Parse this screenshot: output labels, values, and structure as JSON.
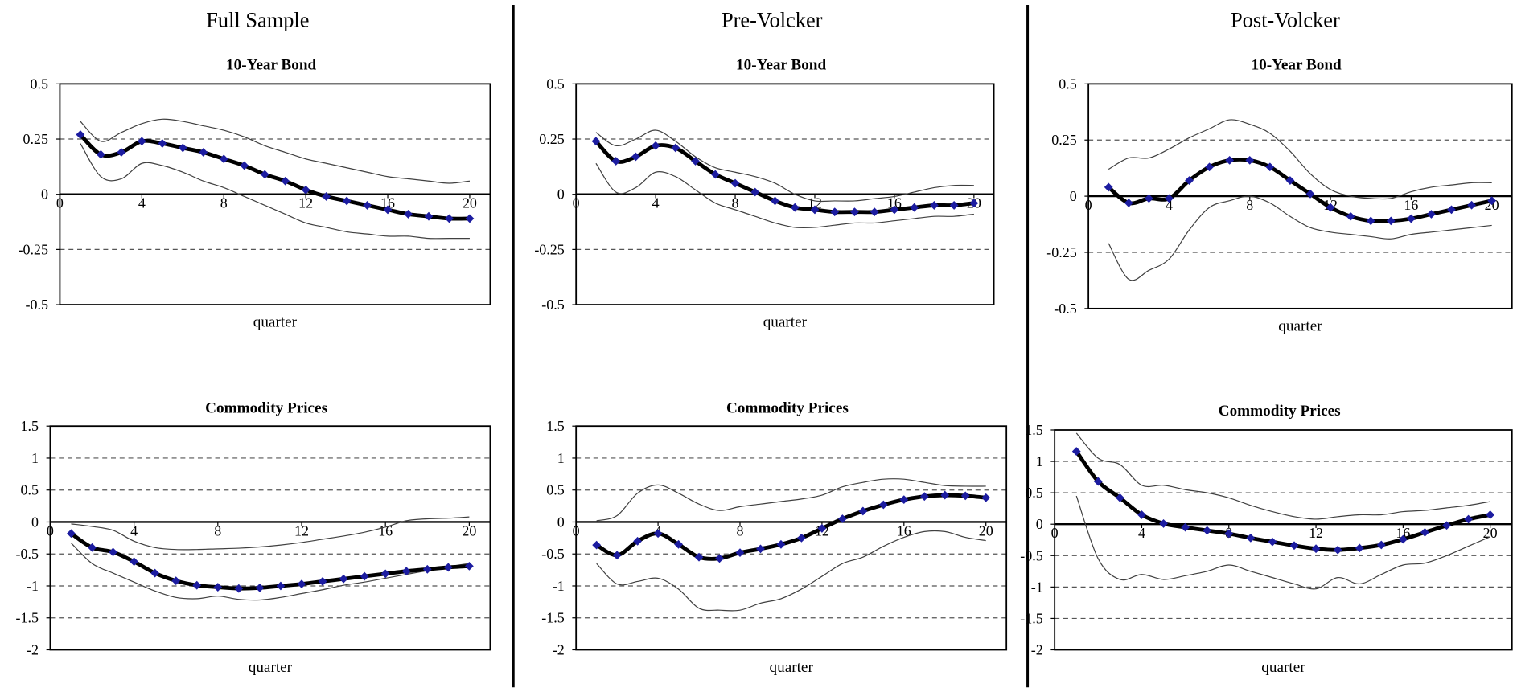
{
  "columns": [
    "Full Sample",
    "Pre-Volcker",
    "Post-Volcker"
  ],
  "chart_data": [
    {
      "type": "line",
      "title": "10-Year Bond",
      "x_label": "quarter",
      "x": [
        1,
        2,
        3,
        4,
        5,
        6,
        7,
        8,
        9,
        10,
        11,
        12,
        13,
        14,
        15,
        16,
        17,
        18,
        19,
        20
      ],
      "xlim": [
        0,
        21
      ],
      "xticks": [
        0,
        4,
        8,
        12,
        16,
        20
      ],
      "ylim": [
        -0.5,
        0.5
      ],
      "yticks": [
        -0.5,
        -0.25,
        0,
        0.25,
        0.5
      ],
      "grid": true,
      "series": [
        {
          "color": "#000000",
          "marker_color": "#1c1ca0",
          "values": [
            0.27,
            0.18,
            0.19,
            0.24,
            0.23,
            0.21,
            0.19,
            0.16,
            0.13,
            0.09,
            0.06,
            0.02,
            -0.01,
            -0.03,
            -0.05,
            -0.07,
            -0.09,
            -0.1,
            -0.11,
            -0.11
          ]
        },
        {
          "color": "#404040",
          "values": [
            0.33,
            0.24,
            0.28,
            0.32,
            0.34,
            0.33,
            0.31,
            0.29,
            0.26,
            0.22,
            0.19,
            0.16,
            0.14,
            0.12,
            0.1,
            0.08,
            0.07,
            0.06,
            0.05,
            0.06
          ]
        },
        {
          "color": "#404040",
          "values": [
            0.23,
            0.08,
            0.07,
            0.14,
            0.13,
            0.1,
            0.06,
            0.03,
            -0.01,
            -0.05,
            -0.09,
            -0.13,
            -0.15,
            -0.17,
            -0.18,
            -0.19,
            -0.19,
            -0.2,
            -0.2,
            -0.2
          ]
        }
      ]
    },
    {
      "type": "line",
      "title": "10-Year Bond",
      "x_label": "quarter",
      "x": [
        1,
        2,
        3,
        4,
        5,
        6,
        7,
        8,
        9,
        10,
        11,
        12,
        13,
        14,
        15,
        16,
        17,
        18,
        19,
        20
      ],
      "xlim": [
        0,
        21
      ],
      "xticks": [
        0,
        4,
        8,
        12,
        16,
        20
      ],
      "ylim": [
        -0.5,
        0.5
      ],
      "yticks": [
        -0.5,
        -0.25,
        0,
        0.25,
        0.5
      ],
      "grid": true,
      "series": [
        {
          "color": "#000000",
          "marker_color": "#1c1ca0",
          "values": [
            0.24,
            0.15,
            0.17,
            0.22,
            0.21,
            0.15,
            0.09,
            0.05,
            0.01,
            -0.03,
            -0.06,
            -0.07,
            -0.08,
            -0.08,
            -0.08,
            -0.07,
            -0.06,
            -0.05,
            -0.05,
            -0.04
          ]
        },
        {
          "color": "#404040",
          "values": [
            0.28,
            0.22,
            0.25,
            0.29,
            0.24,
            0.17,
            0.12,
            0.1,
            0.08,
            0.05,
            0.0,
            -0.03,
            -0.03,
            -0.03,
            -0.02,
            -0.01,
            0.01,
            0.03,
            0.04,
            0.04
          ]
        },
        {
          "color": "#404040",
          "values": [
            0.14,
            0.01,
            0.03,
            0.1,
            0.08,
            0.02,
            -0.04,
            -0.07,
            -0.1,
            -0.13,
            -0.15,
            -0.15,
            -0.14,
            -0.13,
            -0.13,
            -0.12,
            -0.11,
            -0.1,
            -0.1,
            -0.09
          ]
        }
      ]
    },
    {
      "type": "line",
      "title": "10-Year Bond",
      "x_label": "quarter",
      "x": [
        1,
        2,
        3,
        4,
        5,
        6,
        7,
        8,
        9,
        10,
        11,
        12,
        13,
        14,
        15,
        16,
        17,
        18,
        19,
        20
      ],
      "xlim": [
        0,
        21
      ],
      "xticks": [
        0,
        4,
        8,
        12,
        16,
        20
      ],
      "ylim": [
        -0.5,
        0.5
      ],
      "yticks": [
        -0.5,
        -0.25,
        0,
        0.25,
        0.5
      ],
      "grid": true,
      "series": [
        {
          "color": "#000000",
          "marker_color": "#1c1ca0",
          "values": [
            0.04,
            -0.03,
            -0.01,
            -0.01,
            0.07,
            0.13,
            0.16,
            0.16,
            0.13,
            0.07,
            0.01,
            -0.05,
            -0.09,
            -0.11,
            -0.11,
            -0.1,
            -0.08,
            -0.06,
            -0.04,
            -0.02
          ]
        },
        {
          "color": "#404040",
          "values": [
            0.12,
            0.17,
            0.17,
            0.21,
            0.26,
            0.3,
            0.34,
            0.32,
            0.28,
            0.2,
            0.1,
            0.03,
            0.0,
            -0.01,
            -0.01,
            0.02,
            0.04,
            0.05,
            0.06,
            0.06
          ]
        },
        {
          "color": "#404040",
          "values": [
            -0.21,
            -0.37,
            -0.33,
            -0.28,
            -0.15,
            -0.05,
            -0.02,
            0.0,
            -0.03,
            -0.09,
            -0.14,
            -0.16,
            -0.17,
            -0.18,
            -0.19,
            -0.17,
            -0.16,
            -0.15,
            -0.14,
            -0.13
          ]
        }
      ]
    },
    {
      "type": "line",
      "title": "Commodity Prices",
      "x_label": "quarter",
      "x": [
        1,
        2,
        3,
        4,
        5,
        6,
        7,
        8,
        9,
        10,
        11,
        12,
        13,
        14,
        15,
        16,
        17,
        18,
        19,
        20
      ],
      "xlim": [
        0,
        21
      ],
      "xticks": [
        0,
        4,
        8,
        12,
        16,
        20
      ],
      "ylim": [
        -2,
        1.5
      ],
      "yticks": [
        -2,
        -1.5,
        -1,
        -0.5,
        0,
        0.5,
        1,
        1.5
      ],
      "grid": true,
      "series": [
        {
          "color": "#000000",
          "marker_color": "#1c1ca0",
          "values": [
            -0.18,
            -0.4,
            -0.47,
            -0.62,
            -0.8,
            -0.92,
            -0.99,
            -1.02,
            -1.04,
            -1.03,
            -1.0,
            -0.97,
            -0.93,
            -0.89,
            -0.85,
            -0.81,
            -0.77,
            -0.74,
            -0.71,
            -0.69
          ]
        },
        {
          "color": "#404040",
          "values": [
            -0.03,
            -0.07,
            -0.13,
            -0.3,
            -0.4,
            -0.43,
            -0.43,
            -0.42,
            -0.41,
            -0.39,
            -0.36,
            -0.32,
            -0.27,
            -0.22,
            -0.16,
            -0.08,
            0.02,
            0.05,
            0.06,
            0.08
          ]
        },
        {
          "color": "#404040",
          "values": [
            -0.33,
            -0.65,
            -0.8,
            -0.94,
            -1.08,
            -1.18,
            -1.2,
            -1.16,
            -1.21,
            -1.22,
            -1.18,
            -1.12,
            -1.06,
            -0.99,
            -0.94,
            -0.88,
            -0.82,
            -0.76,
            -0.7,
            -0.65
          ]
        }
      ]
    },
    {
      "type": "line",
      "title": "Commodity Prices",
      "x_label": "quarter",
      "x": [
        1,
        2,
        3,
        4,
        5,
        6,
        7,
        8,
        9,
        10,
        11,
        12,
        13,
        14,
        15,
        16,
        17,
        18,
        19,
        20
      ],
      "xlim": [
        0,
        21
      ],
      "xticks": [
        0,
        4,
        8,
        12,
        16,
        20
      ],
      "ylim": [
        -2,
        1.5
      ],
      "yticks": [
        -2,
        -1.5,
        -1,
        -0.5,
        0,
        0.5,
        1,
        1.5
      ],
      "grid": true,
      "series": [
        {
          "color": "#000000",
          "marker_color": "#1c1ca0",
          "values": [
            -0.36,
            -0.52,
            -0.3,
            -0.18,
            -0.35,
            -0.55,
            -0.57,
            -0.48,
            -0.42,
            -0.35,
            -0.25,
            -0.1,
            0.05,
            0.17,
            0.27,
            0.35,
            0.4,
            0.42,
            0.41,
            0.38
          ]
        },
        {
          "color": "#404040",
          "values": [
            0.02,
            0.1,
            0.45,
            0.58,
            0.45,
            0.28,
            0.18,
            0.24,
            0.28,
            0.32,
            0.36,
            0.42,
            0.55,
            0.62,
            0.67,
            0.67,
            0.62,
            0.57,
            0.56,
            0.56
          ]
        },
        {
          "color": "#404040",
          "values": [
            -0.65,
            -0.97,
            -0.93,
            -0.88,
            -1.05,
            -1.35,
            -1.38,
            -1.38,
            -1.27,
            -1.2,
            -1.05,
            -0.85,
            -0.65,
            -0.55,
            -0.38,
            -0.24,
            -0.15,
            -0.15,
            -0.24,
            -0.29
          ]
        }
      ]
    },
    {
      "type": "line",
      "title": "Commodity Prices",
      "x_label": "quarter",
      "x": [
        1,
        2,
        3,
        4,
        5,
        6,
        7,
        8,
        9,
        10,
        11,
        12,
        13,
        14,
        15,
        16,
        17,
        18,
        19,
        20
      ],
      "xlim": [
        0,
        21
      ],
      "xticks": [
        0,
        4,
        8,
        12,
        16,
        20
      ],
      "ylim": [
        -2,
        1.5
      ],
      "yticks": [
        -2,
        -1.5,
        -1,
        -0.5,
        0,
        0.5,
        1,
        1.5
      ],
      "grid": true,
      "series": [
        {
          "color": "#000000",
          "marker_color": "#1c1ca0",
          "values": [
            1.16,
            0.68,
            0.42,
            0.15,
            0.01,
            -0.05,
            -0.1,
            -0.15,
            -0.22,
            -0.28,
            -0.34,
            -0.39,
            -0.41,
            -0.38,
            -0.33,
            -0.24,
            -0.13,
            -0.02,
            0.08,
            0.15
          ]
        },
        {
          "color": "#404040",
          "values": [
            1.45,
            1.05,
            0.95,
            0.62,
            0.62,
            0.55,
            0.5,
            0.42,
            0.3,
            0.2,
            0.12,
            0.08,
            0.12,
            0.15,
            0.15,
            0.2,
            0.22,
            0.26,
            0.3,
            0.36
          ]
        },
        {
          "color": "#404040",
          "values": [
            0.45,
            -0.55,
            -0.88,
            -0.8,
            -0.88,
            -0.82,
            -0.75,
            -0.65,
            -0.75,
            -0.85,
            -0.95,
            -1.03,
            -0.85,
            -0.95,
            -0.8,
            -0.65,
            -0.62,
            -0.5,
            -0.35,
            -0.2
          ]
        }
      ]
    }
  ]
}
